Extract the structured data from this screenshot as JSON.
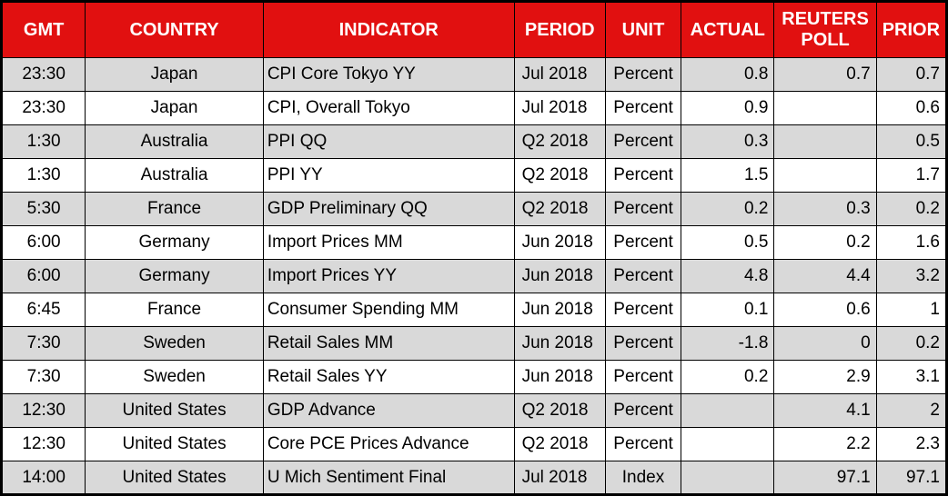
{
  "colors": {
    "header_bg": "#e11010",
    "header_text": "#ffffff",
    "row_bg": "#ffffff",
    "row_alt_bg": "#d9d9d9",
    "border": "#000000",
    "cell_text": "#000000"
  },
  "chart_data": {
    "type": "table",
    "title": "",
    "columns": [
      "GMT",
      "COUNTRY",
      "INDICATOR",
      "PERIOD",
      "UNIT",
      "ACTUAL",
      "REUTERS POLL",
      "PRIOR"
    ],
    "column_keys": [
      "gmt",
      "country",
      "indicator",
      "period",
      "unit",
      "actual",
      "reuters_poll",
      "prior"
    ],
    "rows": [
      {
        "gmt": "23:30",
        "country": "Japan",
        "indicator": "CPI Core Tokyo YY",
        "period": "Jul 2018",
        "unit": "Percent",
        "actual": "0.8",
        "reuters_poll": "0.7",
        "prior": "0.7"
      },
      {
        "gmt": "23:30",
        "country": "Japan",
        "indicator": "CPI, Overall Tokyo",
        "period": "Jul 2018",
        "unit": "Percent",
        "actual": "0.9",
        "reuters_poll": "",
        "prior": "0.6"
      },
      {
        "gmt": "1:30",
        "country": "Australia",
        "indicator": "PPI QQ",
        "period": "Q2 2018",
        "unit": "Percent",
        "actual": "0.3",
        "reuters_poll": "",
        "prior": "0.5"
      },
      {
        "gmt": "1:30",
        "country": "Australia",
        "indicator": "PPI YY",
        "period": "Q2 2018",
        "unit": "Percent",
        "actual": "1.5",
        "reuters_poll": "",
        "prior": "1.7"
      },
      {
        "gmt": "5:30",
        "country": "France",
        "indicator": "GDP Preliminary QQ",
        "period": "Q2 2018",
        "unit": "Percent",
        "actual": "0.2",
        "reuters_poll": "0.3",
        "prior": "0.2"
      },
      {
        "gmt": "6:00",
        "country": "Germany",
        "indicator": "Import Prices MM",
        "period": "Jun 2018",
        "unit": "Percent",
        "actual": "0.5",
        "reuters_poll": "0.2",
        "prior": "1.6"
      },
      {
        "gmt": "6:00",
        "country": "Germany",
        "indicator": "Import Prices YY",
        "period": "Jun 2018",
        "unit": "Percent",
        "actual": "4.8",
        "reuters_poll": "4.4",
        "prior": "3.2"
      },
      {
        "gmt": "6:45",
        "country": "France",
        "indicator": "Consumer Spending MM",
        "period": "Jun 2018",
        "unit": "Percent",
        "actual": "0.1",
        "reuters_poll": "0.6",
        "prior": "1"
      },
      {
        "gmt": "7:30",
        "country": "Sweden",
        "indicator": "Retail Sales MM",
        "period": "Jun 2018",
        "unit": "Percent",
        "actual": "-1.8",
        "reuters_poll": "0",
        "prior": "0.2"
      },
      {
        "gmt": "7:30",
        "country": "Sweden",
        "indicator": "Retail Sales YY",
        "period": "Jun 2018",
        "unit": "Percent",
        "actual": "0.2",
        "reuters_poll": "2.9",
        "prior": "3.1"
      },
      {
        "gmt": "12:30",
        "country": "United States",
        "indicator": "GDP Advance",
        "period": "Q2 2018",
        "unit": "Percent",
        "actual": "",
        "reuters_poll": "4.1",
        "prior": "2"
      },
      {
        "gmt": "12:30",
        "country": "United States",
        "indicator": "Core PCE Prices Advance",
        "period": "Q2 2018",
        "unit": "Percent",
        "actual": "",
        "reuters_poll": "2.2",
        "prior": "2.3"
      },
      {
        "gmt": "14:00",
        "country": "United States",
        "indicator": "U Mich Sentiment Final",
        "period": "Jul 2018",
        "unit": "Index",
        "actual": "",
        "reuters_poll": "97.1",
        "prior": "97.1"
      }
    ]
  }
}
